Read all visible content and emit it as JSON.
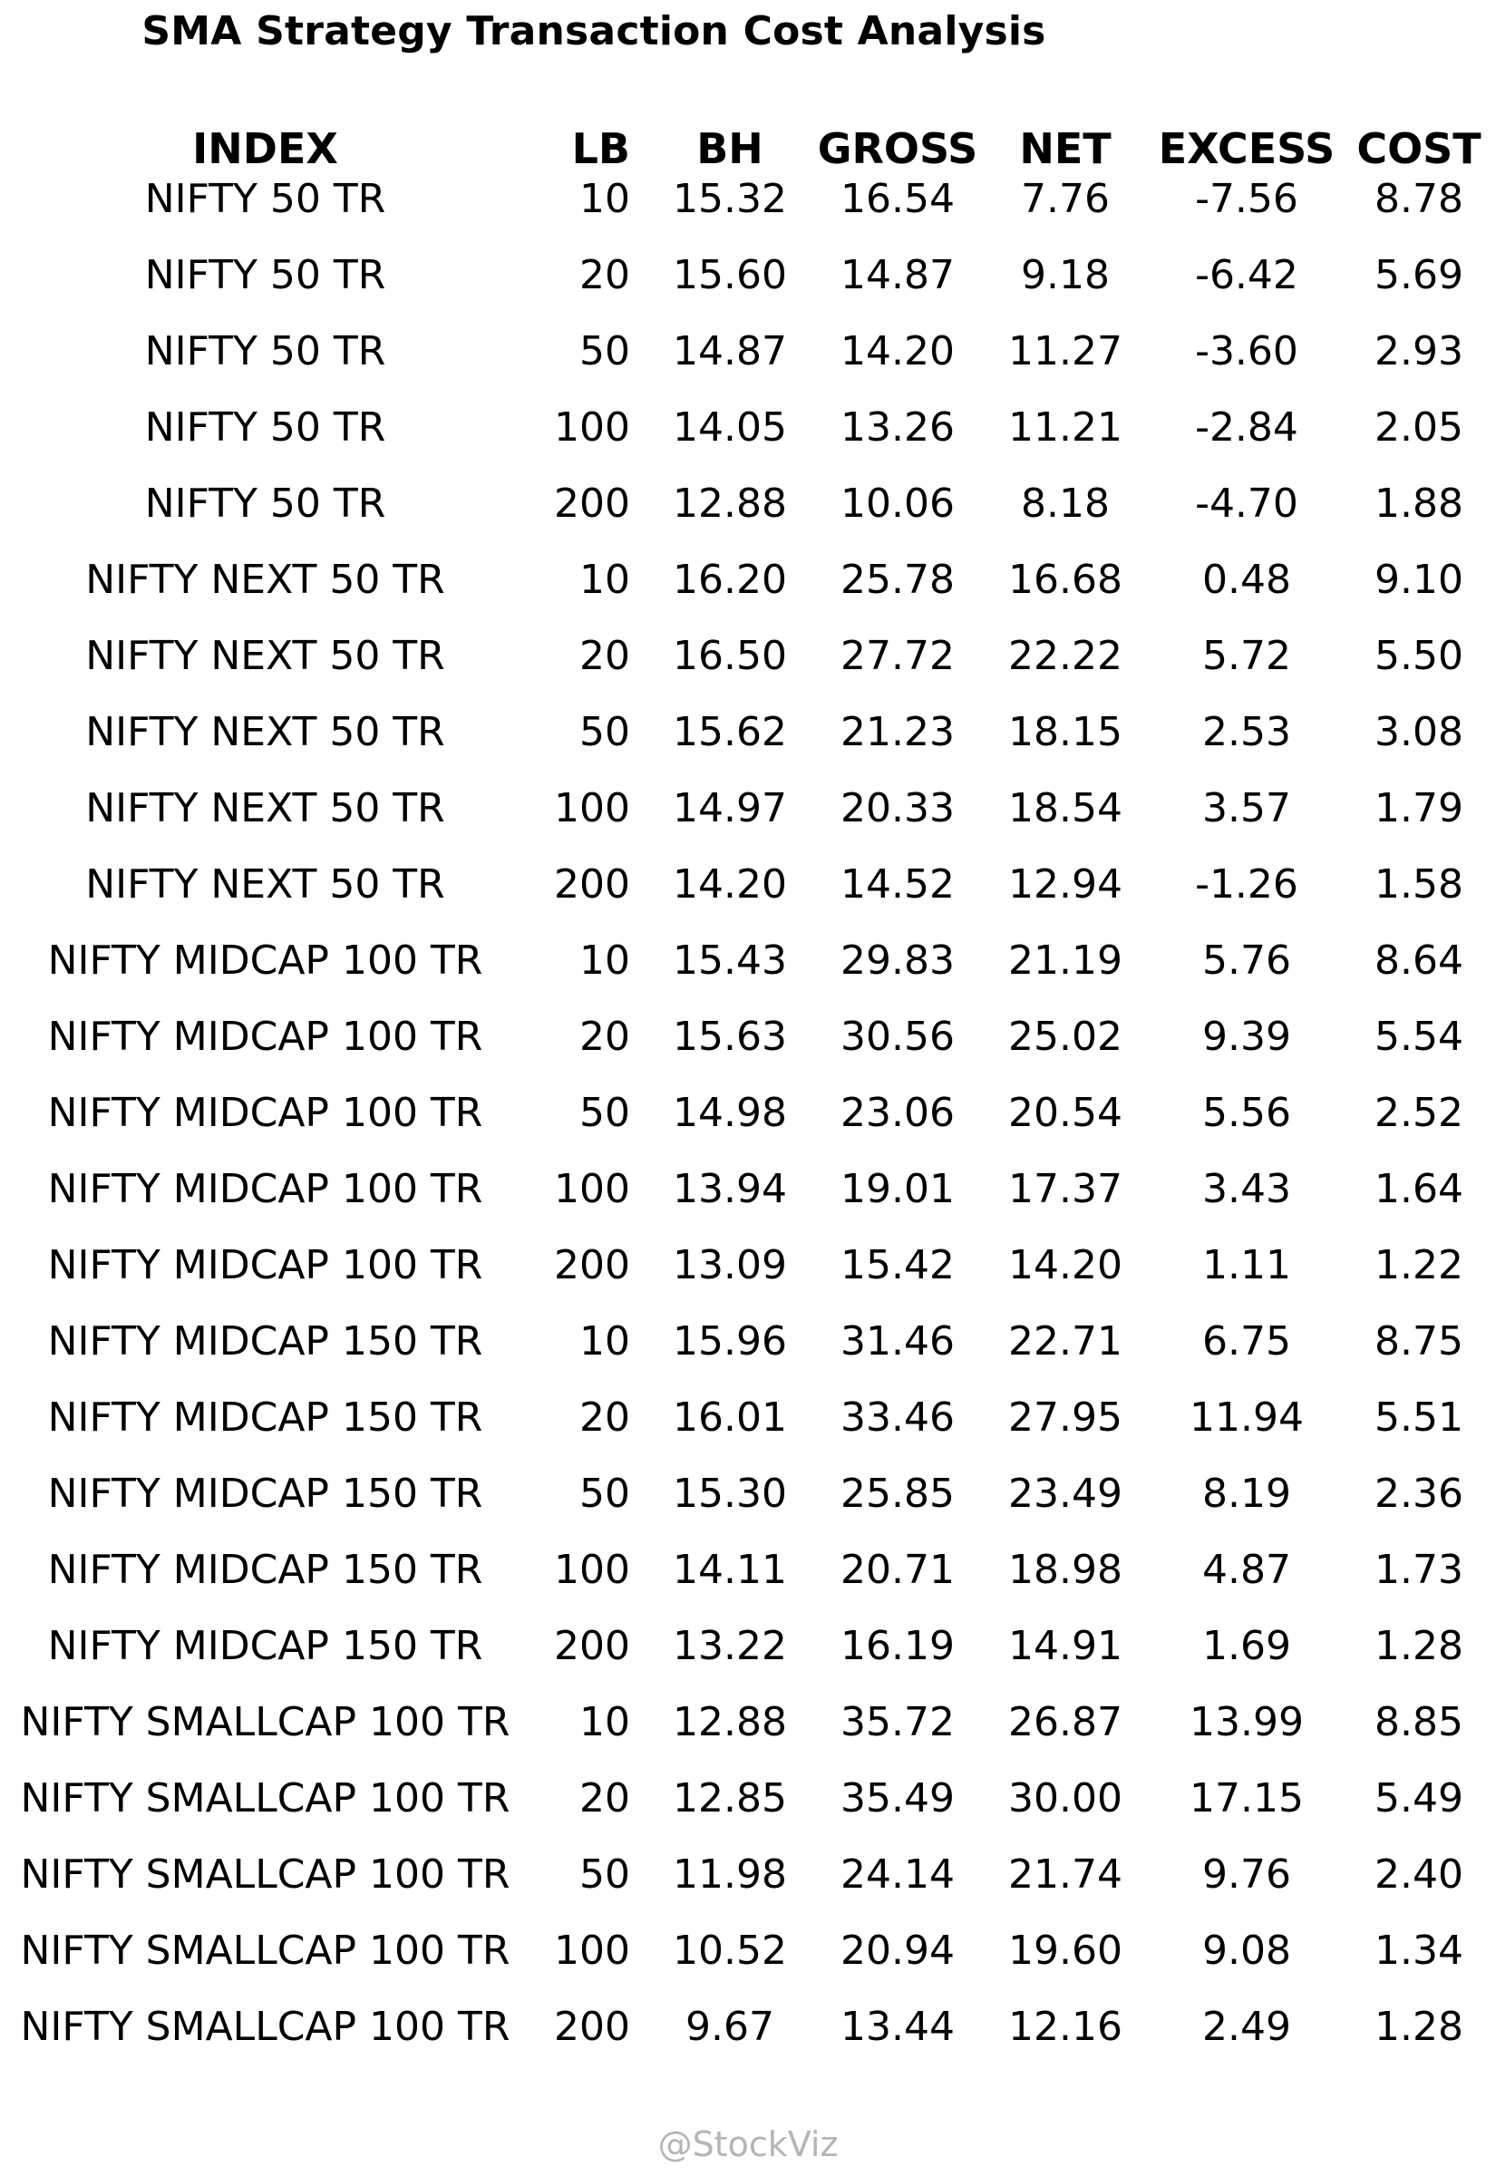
{
  "chart_data": {
    "type": "table",
    "title": "SMA Strategy Transaction Cost Analysis",
    "columns": [
      "INDEX",
      "LB",
      "BH",
      "GROSS",
      "NET",
      "EXCESS",
      "COST"
    ],
    "rows": [
      [
        "NIFTY 50 TR",
        "10",
        "15.32",
        "16.54",
        "7.76",
        "-7.56",
        "8.78"
      ],
      [
        "NIFTY 50 TR",
        "20",
        "15.60",
        "14.87",
        "9.18",
        "-6.42",
        "5.69"
      ],
      [
        "NIFTY 50 TR",
        "50",
        "14.87",
        "14.20",
        "11.27",
        "-3.60",
        "2.93"
      ],
      [
        "NIFTY 50 TR",
        "100",
        "14.05",
        "13.26",
        "11.21",
        "-2.84",
        "2.05"
      ],
      [
        "NIFTY 50 TR",
        "200",
        "12.88",
        "10.06",
        "8.18",
        "-4.70",
        "1.88"
      ],
      [
        "NIFTY NEXT 50 TR",
        "10",
        "16.20",
        "25.78",
        "16.68",
        "0.48",
        "9.10"
      ],
      [
        "NIFTY NEXT 50 TR",
        "20",
        "16.50",
        "27.72",
        "22.22",
        "5.72",
        "5.50"
      ],
      [
        "NIFTY NEXT 50 TR",
        "50",
        "15.62",
        "21.23",
        "18.15",
        "2.53",
        "3.08"
      ],
      [
        "NIFTY NEXT 50 TR",
        "100",
        "14.97",
        "20.33",
        "18.54",
        "3.57",
        "1.79"
      ],
      [
        "NIFTY NEXT 50 TR",
        "200",
        "14.20",
        "14.52",
        "12.94",
        "-1.26",
        "1.58"
      ],
      [
        "NIFTY MIDCAP 100 TR",
        "10",
        "15.43",
        "29.83",
        "21.19",
        "5.76",
        "8.64"
      ],
      [
        "NIFTY MIDCAP 100 TR",
        "20",
        "15.63",
        "30.56",
        "25.02",
        "9.39",
        "5.54"
      ],
      [
        "NIFTY MIDCAP 100 TR",
        "50",
        "14.98",
        "23.06",
        "20.54",
        "5.56",
        "2.52"
      ],
      [
        "NIFTY MIDCAP 100 TR",
        "100",
        "13.94",
        "19.01",
        "17.37",
        "3.43",
        "1.64"
      ],
      [
        "NIFTY MIDCAP 100 TR",
        "200",
        "13.09",
        "15.42",
        "14.20",
        "1.11",
        "1.22"
      ],
      [
        "NIFTY MIDCAP 150 TR",
        "10",
        "15.96",
        "31.46",
        "22.71",
        "6.75",
        "8.75"
      ],
      [
        "NIFTY MIDCAP 150 TR",
        "20",
        "16.01",
        "33.46",
        "27.95",
        "11.94",
        "5.51"
      ],
      [
        "NIFTY MIDCAP 150 TR",
        "50",
        "15.30",
        "25.85",
        "23.49",
        "8.19",
        "2.36"
      ],
      [
        "NIFTY MIDCAP 150 TR",
        "100",
        "14.11",
        "20.71",
        "18.98",
        "4.87",
        "1.73"
      ],
      [
        "NIFTY MIDCAP 150 TR",
        "200",
        "13.22",
        "16.19",
        "14.91",
        "1.69",
        "1.28"
      ],
      [
        "NIFTY SMALLCAP 100 TR",
        "10",
        "12.88",
        "35.72",
        "26.87",
        "13.99",
        "8.85"
      ],
      [
        "NIFTY SMALLCAP 100 TR",
        "20",
        "12.85",
        "35.49",
        "30.00",
        "17.15",
        "5.49"
      ],
      [
        "NIFTY SMALLCAP 100 TR",
        "50",
        "11.98",
        "24.14",
        "21.74",
        "9.76",
        "2.40"
      ],
      [
        "NIFTY SMALLCAP 100 TR",
        "100",
        "10.52",
        "20.94",
        "19.60",
        "9.08",
        "1.34"
      ],
      [
        "NIFTY SMALLCAP 100 TR",
        "200",
        "9.67",
        "13.44",
        "12.16",
        "2.49",
        "1.28"
      ]
    ],
    "credit": "@StockViz"
  }
}
